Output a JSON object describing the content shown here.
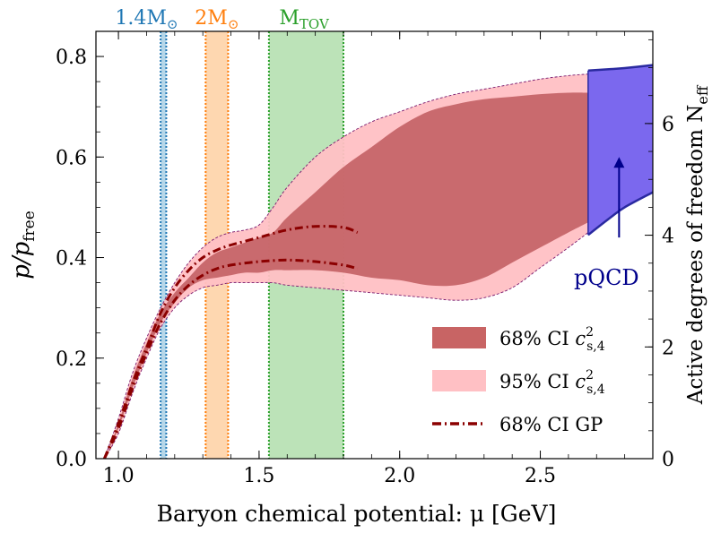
{
  "chart_data": {
    "type": "area",
    "xlabel": "Baryon chemical potential: μ [GeV]",
    "ylabel_left": "p/p_free",
    "ylabel_right": "Active degrees of freedom N_eff",
    "xlim": [
      0.92,
      2.9
    ],
    "ylim_left": [
      0.0,
      0.85
    ],
    "ylim_right": [
      0.0,
      7.65
    ],
    "x_ticks": [
      1.0,
      1.5,
      2.0,
      2.5
    ],
    "x_tick_labels": [
      "1.0",
      "1.5",
      "2.0",
      "2.5"
    ],
    "y_ticks_left": [
      0.0,
      0.2,
      0.4,
      0.6,
      0.8
    ],
    "y_tick_labels_left": [
      "0.0",
      "0.2",
      "0.4",
      "0.6",
      "0.8"
    ],
    "y_ticks_right": [
      0,
      2,
      4,
      6
    ],
    "y_tick_labels_right": [
      "0",
      "2",
      "4",
      "6"
    ],
    "grid": false,
    "legend_position": "bottom-right",
    "vertical_bands": [
      {
        "label": "1.4M",
        "label_sub": "⊙",
        "color": "#1f77b4",
        "x_range": [
          1.15,
          1.17
        ]
      },
      {
        "label": "2M",
        "label_sub": "⊙",
        "color": "#ff7f0e",
        "x_range": [
          1.31,
          1.39
        ]
      },
      {
        "label": "M",
        "label_sub": "TOV",
        "color": "#2ca02c",
        "x_range": [
          1.535,
          1.8
        ]
      }
    ],
    "series": [
      {
        "name": "68% CI c²s,4",
        "color": "#c86464",
        "x": [
          0.95,
          1.0,
          1.05,
          1.1,
          1.15,
          1.2,
          1.25,
          1.3,
          1.35,
          1.4,
          1.45,
          1.5,
          1.55,
          1.6,
          1.7,
          1.8,
          1.9,
          2.0,
          2.1,
          2.2,
          2.3,
          2.4,
          2.5,
          2.6,
          2.67
        ],
        "lower": [
          0.0,
          0.06,
          0.14,
          0.21,
          0.27,
          0.31,
          0.34,
          0.355,
          0.36,
          0.365,
          0.37,
          0.37,
          0.375,
          0.375,
          0.375,
          0.37,
          0.36,
          0.355,
          0.345,
          0.345,
          0.36,
          0.39,
          0.42,
          0.45,
          0.47
        ],
        "upper": [
          0.0,
          0.07,
          0.16,
          0.23,
          0.29,
          0.33,
          0.36,
          0.39,
          0.41,
          0.42,
          0.43,
          0.44,
          0.45,
          0.48,
          0.53,
          0.58,
          0.62,
          0.66,
          0.69,
          0.705,
          0.715,
          0.72,
          0.725,
          0.728,
          0.728
        ]
      },
      {
        "name": "95% CI c²s,4",
        "color": "#ffc0c4",
        "x": [
          0.95,
          1.0,
          1.05,
          1.1,
          1.15,
          1.2,
          1.25,
          1.3,
          1.35,
          1.4,
          1.45,
          1.5,
          1.55,
          1.6,
          1.7,
          1.8,
          1.9,
          2.0,
          2.1,
          2.2,
          2.3,
          2.4,
          2.5,
          2.6,
          2.67
        ],
        "lower": [
          0.0,
          0.05,
          0.13,
          0.2,
          0.26,
          0.3,
          0.325,
          0.34,
          0.345,
          0.35,
          0.35,
          0.35,
          0.35,
          0.345,
          0.34,
          0.335,
          0.33,
          0.325,
          0.32,
          0.315,
          0.32,
          0.34,
          0.38,
          0.42,
          0.45
        ],
        "upper": [
          0.0,
          0.08,
          0.17,
          0.24,
          0.3,
          0.35,
          0.39,
          0.42,
          0.44,
          0.45,
          0.455,
          0.465,
          0.5,
          0.54,
          0.6,
          0.64,
          0.67,
          0.69,
          0.71,
          0.725,
          0.735,
          0.745,
          0.755,
          0.762,
          0.765
        ]
      },
      {
        "name": "68% CI GP",
        "color": "#8b0000",
        "style": "dash-dot",
        "lower_x": [
          0.95,
          1.0,
          1.05,
          1.1,
          1.15,
          1.2,
          1.25,
          1.3,
          1.35,
          1.4,
          1.5,
          1.6,
          1.7,
          1.8,
          1.85
        ],
        "lower_y": [
          0.0,
          0.06,
          0.14,
          0.21,
          0.27,
          0.315,
          0.345,
          0.365,
          0.378,
          0.385,
          0.392,
          0.395,
          0.392,
          0.385,
          0.378
        ],
        "upper_x": [
          0.95,
          1.0,
          1.05,
          1.1,
          1.15,
          1.2,
          1.25,
          1.3,
          1.35,
          1.4,
          1.5,
          1.6,
          1.7,
          1.8,
          1.85
        ],
        "upper_y": [
          0.0,
          0.07,
          0.15,
          0.22,
          0.29,
          0.34,
          0.375,
          0.4,
          0.415,
          0.425,
          0.44,
          0.455,
          0.462,
          0.46,
          0.45
        ]
      },
      {
        "name": "pQCD",
        "color": "#7b68ee",
        "x": [
          2.67,
          2.75,
          2.8,
          2.9
        ],
        "lower": [
          0.445,
          0.48,
          0.5,
          0.53
        ],
        "upper": [
          0.772,
          0.775,
          0.777,
          0.783
        ]
      }
    ],
    "annotation": {
      "text": "pQCD",
      "arrow_x": 2.78,
      "arrow_y_from": 0.44,
      "arrow_y_to": 0.6
    }
  },
  "legend": [
    {
      "label": "68% CI ",
      "math": "c",
      "sup": "2",
      "sub": "s,4",
      "kind": "patch",
      "color": "#c86464"
    },
    {
      "label": "95% CI ",
      "math": "c",
      "sup": "2",
      "sub": "s,4",
      "kind": "patch",
      "color": "#ffc0c4"
    },
    {
      "label": "68% CI GP",
      "kind": "line",
      "color": "#8b0000"
    }
  ]
}
